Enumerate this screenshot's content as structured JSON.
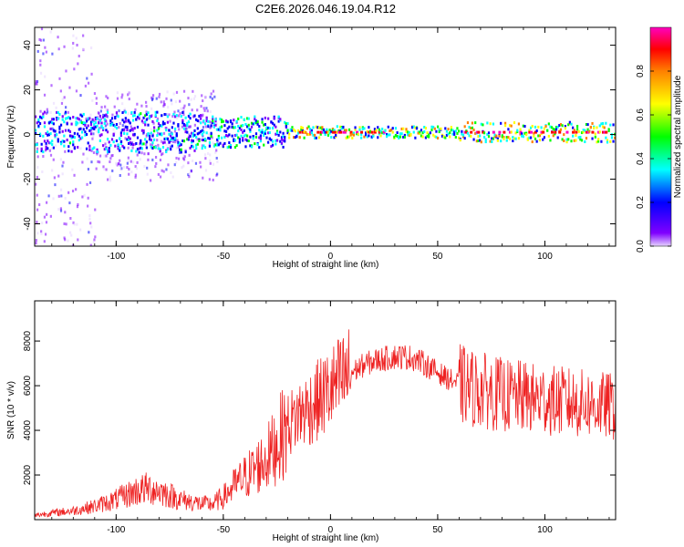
{
  "title": "C2E6.2026.046.19.04.R12",
  "chart_data": [
    {
      "type": "heatmap",
      "xlabel": "Height of straight line (km)",
      "ylabel": "Frequency (Hz)",
      "xlim": [
        -138,
        133
      ],
      "ylim": [
        -50,
        48
      ],
      "xticks": [
        -100,
        -50,
        0,
        50,
        100
      ],
      "yticks": [
        -40,
        -20,
        0,
        20,
        40
      ],
      "colorbar": {
        "label": "Normalized spectral amplitude",
        "range": [
          0,
          1
        ],
        "ticks": [
          "0.0",
          "0.2",
          "0.4",
          "0.6",
          "0.8"
        ],
        "colors": [
          "#e6d4ff",
          "#8000ff",
          "#0000ff",
          "#00ffff",
          "#00ff00",
          "#ffff00",
          "#ff8000",
          "#ff0000",
          "#ff00c0"
        ]
      },
      "grid": false
    },
    {
      "type": "line",
      "xlabel": "Height of straight line (km)",
      "ylabel": "SNR (10 * v/v)",
      "xlim": [
        -138,
        133
      ],
      "ylim": [
        0,
        9800
      ],
      "xticks": [
        -100,
        -50,
        0,
        50,
        100
      ],
      "yticks": [
        2000,
        4000,
        6000,
        8000
      ],
      "color": "#ee2222",
      "envelope_km": [
        -138,
        -130,
        -120,
        -110,
        -100,
        -95,
        -90,
        -85,
        -80,
        -75,
        -70,
        -65,
        -60,
        -55,
        -50,
        -45,
        -40,
        -35,
        -30,
        -25,
        -20,
        -15,
        -10,
        -5,
        0,
        5,
        10,
        15,
        20,
        25,
        30,
        35,
        40,
        45,
        50,
        55,
        60,
        65,
        70,
        75,
        80,
        85,
        90,
        95,
        100,
        105,
        110,
        115,
        120,
        125,
        130,
        133
      ],
      "envelope_snr": [
        200,
        300,
        400,
        600,
        900,
        1100,
        1300,
        1400,
        1300,
        1100,
        900,
        800,
        700,
        700,
        1000,
        1500,
        1900,
        2300,
        2700,
        3400,
        4200,
        4700,
        5000,
        5400,
        5800,
        6200,
        6600,
        6900,
        7100,
        7200,
        7300,
        7300,
        7200,
        6900,
        6600,
        6300,
        6100,
        5900,
        5800,
        5700,
        5600,
        5500,
        5500,
        5400,
        5400,
        5300,
        5300,
        5200,
        5200,
        5100,
        5100,
        5000
      ]
    }
  ]
}
